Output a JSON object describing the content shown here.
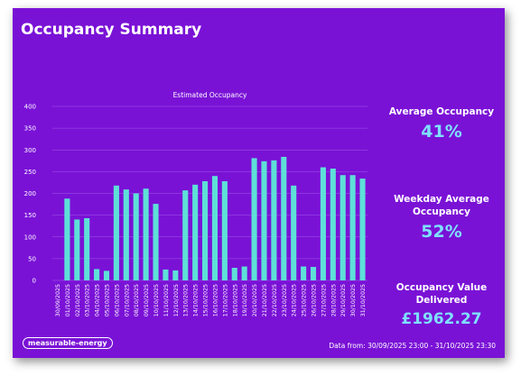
{
  "title": "Occupancy Summary",
  "kpis": {
    "average_label": "Average Occupancy",
    "average_value": "41%",
    "weekday_label": "Weekday Average Occupancy",
    "weekday_value": "52%",
    "value_label": "Occupancy Value Delivered",
    "value_value": "£1962.27"
  },
  "logo": "measurable-energy",
  "footer": "Data from: 30/09/2025 23:00 - 31/10/2025 23:30",
  "colors": {
    "background": "#7a12d6",
    "bar": "#5ee0d8",
    "kpi_value": "#7fe0ff",
    "text": "#ffffff",
    "grid": "#a05ae6"
  },
  "chart_data": {
    "type": "bar",
    "title": "Estimated Occupancy",
    "xlabel": "",
    "ylabel": "",
    "ylim": [
      0,
      400
    ],
    "yticks": [
      0,
      50,
      100,
      150,
      200,
      250,
      300,
      350,
      400
    ],
    "grid": true,
    "categories": [
      "30/09/2025",
      "01/10/2025",
      "02/10/2025",
      "03/10/2025",
      "04/10/2025",
      "05/10/2025",
      "06/10/2025",
      "07/10/2025",
      "08/10/2025",
      "09/10/2025",
      "10/10/2025",
      "11/10/2025",
      "12/10/2025",
      "13/10/2025",
      "14/10/2025",
      "15/10/2025",
      "16/10/2025",
      "17/10/2025",
      "18/10/2025",
      "19/10/2025",
      "20/10/2025",
      "21/10/2025",
      "22/10/2025",
      "23/10/2025",
      "24/10/2025",
      "25/10/2025",
      "26/10/2025",
      "27/10/2025",
      "28/10/2025",
      "29/10/2025",
      "30/10/2025",
      "31/10/2025"
    ],
    "values": [
      0,
      188,
      140,
      143,
      26,
      22,
      218,
      209,
      200,
      211,
      176,
      25,
      23,
      207,
      220,
      228,
      240,
      228,
      29,
      32,
      281,
      274,
      276,
      284,
      218,
      32,
      31,
      260,
      257,
      242,
      242,
      234
    ]
  }
}
